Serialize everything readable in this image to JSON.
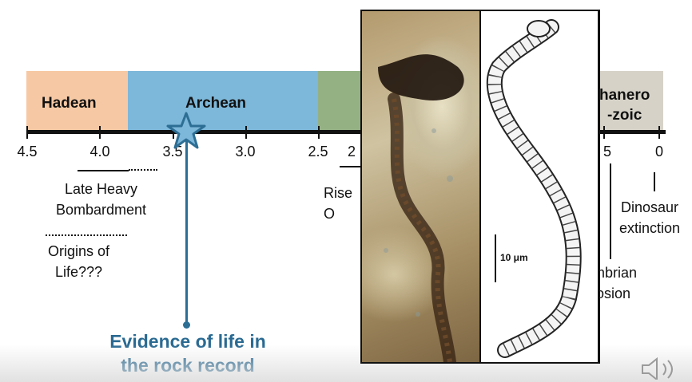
{
  "eons": [
    {
      "name": "Hadean",
      "color": "#f6c9a4"
    },
    {
      "name": "Archean",
      "color": "#7db7d9"
    },
    {
      "name": "",
      "color": "#94b184"
    },
    {
      "name": "hanero\n-zoic",
      "color": "#d6d2c8"
    }
  ],
  "axis": {
    "ticks": [
      "4.5",
      "4.0",
      "3.5",
      "3.0",
      "2.5",
      "2",
      "5",
      "0"
    ]
  },
  "annotations": {
    "late_heavy_bombardment": "Late Heavy\nBombardment",
    "origins_of_life": "Origins of\nLife???",
    "rise_of_oxygen": "Rise\nO",
    "dinosaur_extinction": "Dinosaur\nextinction",
    "cambrian_explosion": "mbrian\nlosion"
  },
  "callout": {
    "text": "Evidence of life in\nthe rock record",
    "color": "#2a6a92"
  },
  "figure": {
    "scale_bar_label": "10 μm"
  },
  "icons": {
    "marker": "star-icon",
    "audio": "speaker-icon"
  }
}
